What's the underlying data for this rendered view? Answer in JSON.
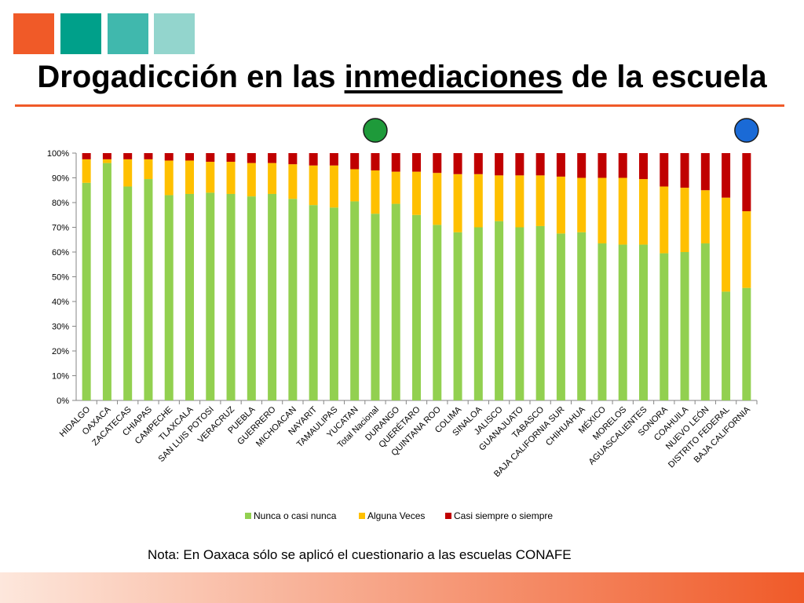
{
  "slide": {
    "title_before": "Drogadicción en las ",
    "title_underlined": "inmediaciones",
    "title_after": " de la escuela",
    "note": "Nota: En Oaxaca sólo se aplicó el cuestionario a las escuelas CONAFE",
    "colors": {
      "square_1": "#f05a28",
      "square_2": "#00a08a",
      "square_3": "#40b8ad",
      "square_4": "#93d5cd",
      "rule": "#f05a28",
      "bar_gradient_start": "#fde7dc",
      "bar_gradient_end": "#f05a28",
      "marker_green": "#1e9a3a",
      "marker_blue": "#1a6ad6"
    },
    "markers": [
      {
        "category": "Total Nacional",
        "color": "green"
      },
      {
        "category": "BAJA CALIFORNIA",
        "color": "blue"
      }
    ]
  },
  "chart_data": {
    "type": "bar",
    "stacked": true,
    "percent": true,
    "ylim": [
      0,
      100
    ],
    "yticks": [
      "0%",
      "10%",
      "20%",
      "30%",
      "40%",
      "50%",
      "60%",
      "70%",
      "80%",
      "90%",
      "100%"
    ],
    "grid": false,
    "legend_position": "bottom",
    "categories": [
      "HIDALGO",
      "OAXACA",
      "ZACATECAS",
      "CHIAPAS",
      "CAMPECHE",
      "TLAXCALA",
      "SAN LUIS POTOSI",
      "VERACRUZ",
      "PUEBLA",
      "GUERRERO",
      "MICHOACAN",
      "NAYARIT",
      "TAMAULIPAS",
      "YUCATAN",
      "Total Nacional",
      "DURANGO",
      "QUERÉTARO",
      "QUINTANA ROO",
      "COLIMA",
      "SINALOA",
      "JALISCO",
      "GUANAJUATO",
      "TABASCO",
      "BAJA CALIFORNIA SUR",
      "CHIHUAHUA",
      "MÉXICO",
      "MORELOS",
      "AGUASCALIENTES",
      "SONORA",
      "COAHUILA",
      "NUEVO LEÓN",
      "DISTRITO FEDERAL",
      "BAJA CALIFORNIA"
    ],
    "series": [
      {
        "name": "Nunca o casi nunca",
        "color": "#92d050",
        "values": [
          88,
          96,
          86.5,
          89.5,
          83,
          83.5,
          84,
          83.5,
          82.5,
          83.5,
          81.5,
          79,
          78,
          80.5,
          75.5,
          79.5,
          75,
          71,
          68,
          70,
          72.5,
          70,
          70.5,
          67.5,
          68,
          63.5,
          63,
          63,
          59.5,
          60,
          63.5,
          44,
          45.5
        ]
      },
      {
        "name": "Alguna Veces",
        "color": "#ffc000",
        "values": [
          9.5,
          1.5,
          11,
          8,
          14,
          13.5,
          12.5,
          13,
          13.5,
          12.5,
          14,
          16,
          17,
          13,
          17.5,
          13,
          17.5,
          21,
          23.5,
          21.5,
          18.5,
          21,
          20.5,
          23,
          22,
          26.5,
          27,
          26.5,
          27,
          26,
          21.5,
          38,
          31
        ]
      },
      {
        "name": "Casi siempre o siempre",
        "color": "#c00000",
        "values": [
          2.5,
          2.5,
          2.5,
          2.5,
          3,
          3,
          3.5,
          3.5,
          4,
          4,
          4.5,
          5,
          5,
          6.5,
          7,
          7.5,
          7.5,
          8,
          8.5,
          8.5,
          9,
          9,
          9,
          9.5,
          10,
          10,
          10,
          10.5,
          13.5,
          14,
          15,
          18,
          23.5
        ]
      }
    ]
  }
}
